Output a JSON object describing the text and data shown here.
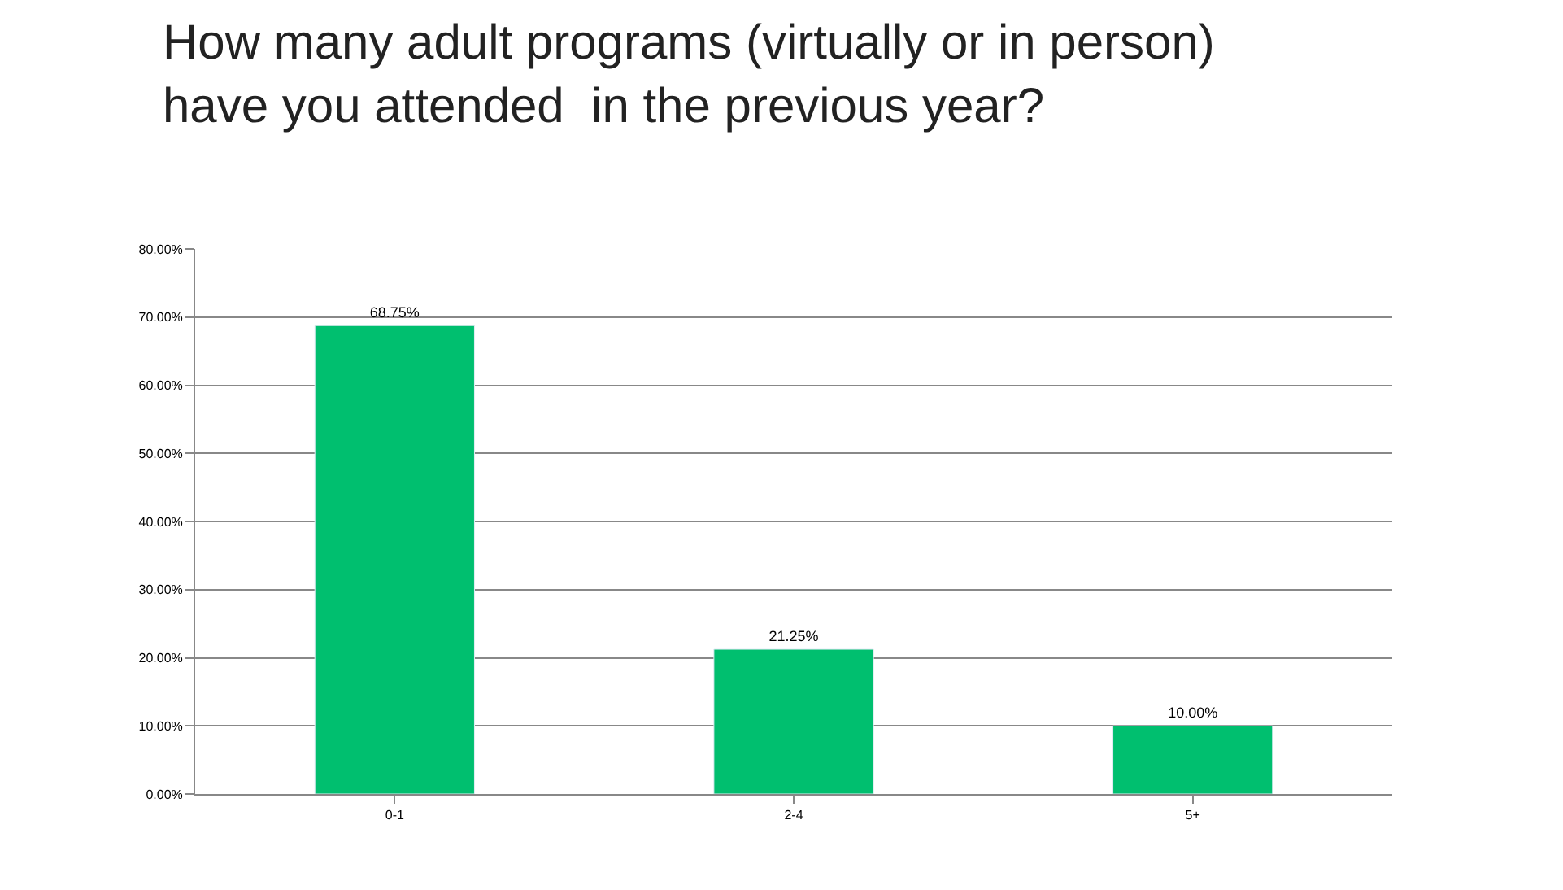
{
  "chart_data": {
    "type": "bar",
    "title": "How many adult programs (virtually or in person)\nhave you attended  in the previous year?",
    "categories": [
      "0-1",
      "2-4",
      "5+"
    ],
    "values": [
      68.75,
      21.25,
      10.0
    ],
    "value_labels": [
      "68.75%",
      "21.25%",
      "10.00%"
    ],
    "color": "#00bf6f",
    "ylim": [
      0,
      80
    ],
    "yticks": [
      {
        "value": 0,
        "label": "0.00%"
      },
      {
        "value": 10,
        "label": "10.00%"
      },
      {
        "value": 20,
        "label": "20.00%"
      },
      {
        "value": 30,
        "label": "30.00%"
      },
      {
        "value": 40,
        "label": "40.00%"
      },
      {
        "value": 50,
        "label": "50.00%"
      },
      {
        "value": 60,
        "label": "60.00%"
      },
      {
        "value": 70,
        "label": "70.00%"
      },
      {
        "value": 80,
        "label": "80.00%"
      }
    ],
    "grid": "y",
    "legend": false
  }
}
